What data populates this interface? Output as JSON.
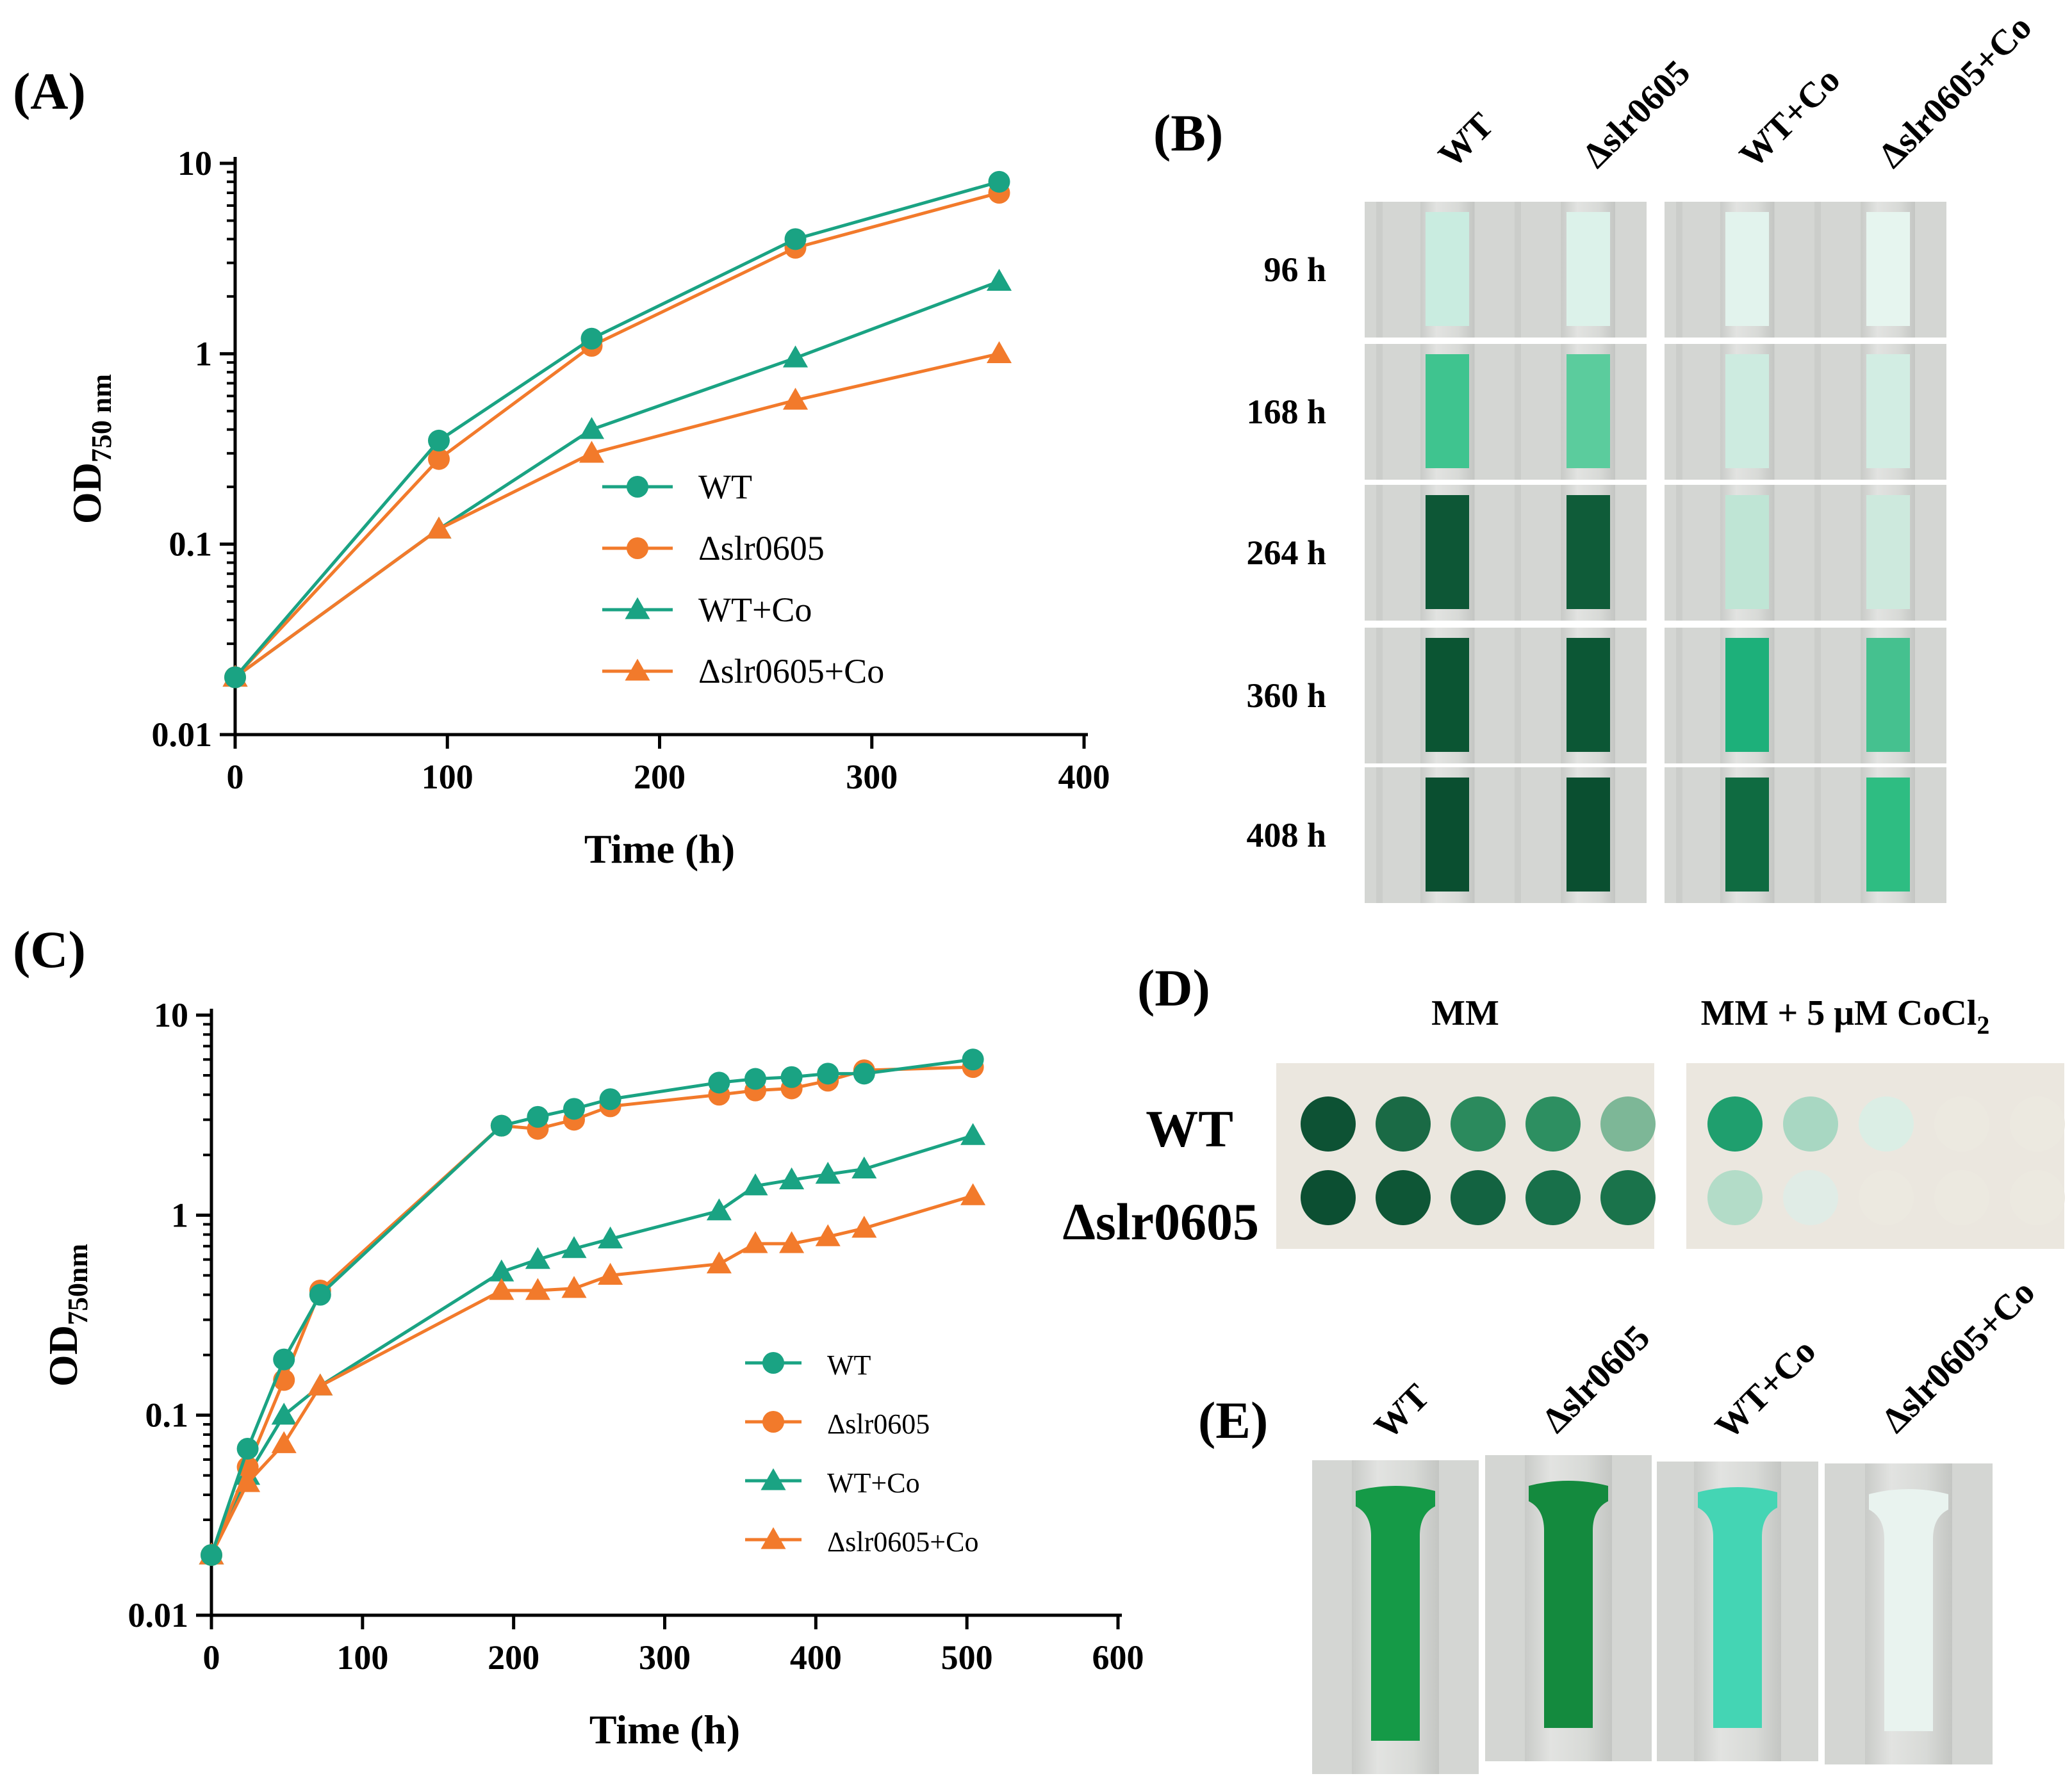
{
  "colors": {
    "wt": "#1aa383",
    "mut": "#f27a2b",
    "axis": "#000000",
    "photo_bg": "#d4d6d3",
    "dark_green": "#0b5a37",
    "medium_green": "#1fb07c",
    "light_green": "#bfe8d9",
    "very_light_green": "#e1f3ec",
    "plate_bg": "#ebe7df"
  },
  "chart_data": [
    {
      "panel": "(A)",
      "type": "line",
      "xlabel": "Time (h)",
      "ylabel_main": "OD",
      "ylabel_sub": "750 nm",
      "yscale": "log",
      "xlim": [
        0,
        400
      ],
      "ylim": [
        0.01,
        10
      ],
      "xticks": [
        0,
        100,
        200,
        300,
        400
      ],
      "xtick_labels": [
        "0",
        "100",
        "200",
        "300",
        "400"
      ],
      "yticks": [
        0.01,
        0.1,
        1,
        10
      ],
      "ytick_labels": [
        "0.01",
        "0.1",
        "1",
        "10"
      ],
      "legend_position": "center-right",
      "series": [
        {
          "name": "WT",
          "marker": "circle",
          "color": "#1aa383",
          "x": [
            0,
            96,
            168,
            264,
            360
          ],
          "y": [
            0.02,
            0.35,
            1.2,
            4.0,
            8.0
          ]
        },
        {
          "name": "Δslr0605",
          "marker": "circle",
          "color": "#f27a2b",
          "x": [
            0,
            96,
            168,
            264,
            360
          ],
          "y": [
            0.02,
            0.28,
            1.1,
            3.6,
            7.0
          ]
        },
        {
          "name": "WT+Co",
          "marker": "triangle",
          "color": "#1aa383",
          "x": [
            0,
            96,
            168,
            264,
            360
          ],
          "y": [
            0.02,
            0.12,
            0.4,
            0.95,
            2.4
          ]
        },
        {
          "name": "Δslr0605+Co",
          "marker": "triangle",
          "color": "#f27a2b",
          "x": [
            0,
            96,
            168,
            264,
            360
          ],
          "y": [
            0.02,
            0.12,
            0.3,
            0.57,
            1.0
          ]
        }
      ]
    },
    {
      "panel": "(C)",
      "type": "line",
      "xlabel": "Time (h)",
      "ylabel_main": "OD",
      "ylabel_sub": "750nm",
      "yscale": "log",
      "xlim": [
        0,
        600
      ],
      "ylim": [
        0.01,
        10
      ],
      "xticks": [
        0,
        100,
        200,
        300,
        400,
        500,
        600
      ],
      "xtick_labels": [
        "0",
        "100",
        "200",
        "300",
        "400",
        "500",
        "600"
      ],
      "yticks": [
        0.01,
        0.1,
        1,
        10
      ],
      "ytick_labels": [
        "0.01",
        "0.1",
        "1",
        "10"
      ],
      "legend_position": "bottom-right",
      "series": [
        {
          "name": "WT",
          "marker": "circle",
          "color": "#1aa383",
          "x": [
            0,
            24,
            48,
            72,
            192,
            216,
            240,
            264,
            336,
            360,
            384,
            408,
            432,
            504
          ],
          "y": [
            0.02,
            0.068,
            0.19,
            0.4,
            2.8,
            3.1,
            3.4,
            3.8,
            4.6,
            4.8,
            4.9,
            5.1,
            5.1,
            6.0
          ]
        },
        {
          "name": "Δslr0605",
          "marker": "circle",
          "color": "#f27a2b",
          "x": [
            0,
            24,
            48,
            72,
            192,
            216,
            240,
            264,
            336,
            360,
            384,
            408,
            432,
            504
          ],
          "y": [
            0.02,
            0.055,
            0.15,
            0.42,
            2.8,
            2.7,
            3.0,
            3.5,
            4.0,
            4.2,
            4.3,
            4.7,
            5.3,
            5.5
          ]
        },
        {
          "name": "WT+Co",
          "marker": "triangle",
          "color": "#1aa383",
          "x": [
            0,
            24,
            48,
            72,
            192,
            216,
            240,
            264,
            336,
            360,
            384,
            408,
            432,
            504
          ],
          "y": [
            0.02,
            0.05,
            0.1,
            0.14,
            0.52,
            0.6,
            0.68,
            0.76,
            1.05,
            1.4,
            1.5,
            1.6,
            1.7,
            2.5
          ]
        },
        {
          "name": "Δslr0605+Co",
          "marker": "triangle",
          "color": "#f27a2b",
          "x": [
            0,
            24,
            48,
            72,
            192,
            216,
            240,
            264,
            336,
            360,
            384,
            408,
            432,
            504
          ],
          "y": [
            0.02,
            0.046,
            0.072,
            0.14,
            0.42,
            0.42,
            0.43,
            0.5,
            0.57,
            0.72,
            0.72,
            0.78,
            0.86,
            1.25
          ]
        }
      ]
    }
  ],
  "panel_b": {
    "label": "(B)",
    "columns": [
      "WT",
      "Δslr0605",
      "WT+Co",
      "Δslr0605+Co"
    ],
    "rows": [
      {
        "time": "96 h",
        "fills": [
          "#c9ece0",
          "#dcf2ea",
          "#e2f3ed",
          "#e6f5ef"
        ]
      },
      {
        "time": "168 h",
        "fills": [
          "#3fc48f",
          "#5bcc9d",
          "#cdebe0",
          "#d2ede3"
        ]
      },
      {
        "time": "264 h",
        "fills": [
          "#0d5736",
          "#0f5c39",
          "#bfe5d5",
          "#cde9dd"
        ]
      },
      {
        "time": "360 h",
        "fills": [
          "#0b5533",
          "#0c5735",
          "#1db07a",
          "#45c18f"
        ]
      },
      {
        "time": "408 h",
        "fills": [
          "#0a4f30",
          "#0a4f30",
          "#0f6b41",
          "#2ebd82"
        ]
      }
    ]
  },
  "panel_d": {
    "label": "(D)",
    "left_title": "MM",
    "right_title_main": "MM + 5 μM CoCl",
    "right_title_sub": "2",
    "row_labels": [
      "WT",
      "Δslr0605"
    ],
    "left_spots": [
      [
        "#0d5234",
        "#1a6a45",
        "#2b8a5d",
        "#2d8f61",
        "#7db797"
      ],
      [
        "#0c4f32",
        "#0e5636",
        "#136341",
        "#18704a",
        "#1a734b"
      ]
    ],
    "right_spots": [
      [
        "#1f9f6e",
        "#a8d7c2",
        "#dbeee5",
        "#ece9e0",
        "#ece9e0"
      ],
      [
        "#b3dcc8",
        "#e0ece6",
        "#ece9e0",
        "#ece9e0",
        "#ece9e0"
      ]
    ]
  },
  "panel_e": {
    "label": "(E)",
    "columns": [
      "WT",
      "Δslr0605",
      "WT+Co",
      "Δslr0605+Co"
    ],
    "fills": [
      "#159a47",
      "#148a3e",
      "#44d5b4",
      "#e9f3ef"
    ]
  }
}
